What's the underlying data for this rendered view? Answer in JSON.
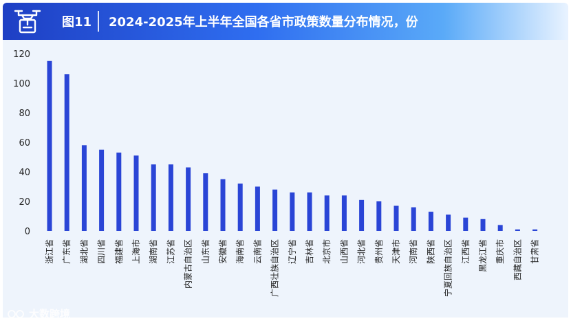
{
  "header": {
    "figure_label": "图11",
    "title": "2024-2025年上半年全国各省市政策数量分布情况，份"
  },
  "watermark": {
    "text": "大数跨境"
  },
  "colors": {
    "bar": "#2a45d6",
    "header_start": "#1e3fc4",
    "background": "#eef4fc"
  },
  "chart_data": {
    "type": "bar",
    "title": "2024-2025年上半年全国各省市政策数量分布情况，份",
    "xlabel": "",
    "ylabel": "",
    "ylim": [
      0,
      120
    ],
    "yticks": [
      0,
      20,
      40,
      60,
      80,
      100,
      120
    ],
    "grid": false,
    "categories": [
      "浙江省",
      "广东省",
      "湖北省",
      "四川省",
      "福建省",
      "上海市",
      "湖南省",
      "江苏省",
      "内蒙古自治区",
      "山东省",
      "安徽省",
      "海南省",
      "云南省",
      "广西壮族自治区",
      "辽宁省",
      "吉林省",
      "北京市",
      "山西省",
      "河北省",
      "贵州省",
      "天津市",
      "河南省",
      "陕西省",
      "宁夏回族自治区",
      "江西省",
      "黑龙江省",
      "重庆市",
      "西藏自治区",
      "甘肃省"
    ],
    "values": [
      115,
      106,
      58,
      55,
      53,
      51,
      45,
      45,
      43,
      39,
      35,
      32,
      30,
      28,
      26,
      26,
      24,
      24,
      21,
      20,
      17,
      16,
      13,
      11,
      9,
      8,
      4,
      1,
      1
    ]
  }
}
